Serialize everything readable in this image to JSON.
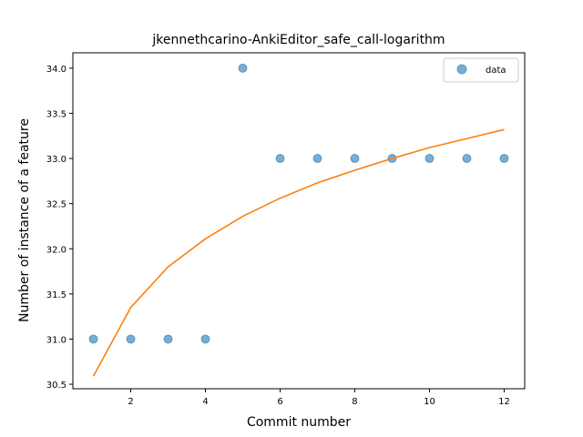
{
  "chart_data": {
    "type": "scatter",
    "title": "jkennethcarino-AnkiEditor_safe_call-logarithm",
    "xlabel": "Commit number",
    "ylabel": "Number of instance of a feature",
    "xlim": [
      0.45,
      12.55
    ],
    "ylim": [
      30.45,
      34.17
    ],
    "xticks": [
      2,
      4,
      6,
      8,
      10,
      12
    ],
    "yticks": [
      30.5,
      31.0,
      31.5,
      32.0,
      32.5,
      33.0,
      33.5,
      34.0
    ],
    "ytick_labels": [
      "30.5",
      "31.0",
      "31.5",
      "32.0",
      "32.5",
      "33.0",
      "33.5",
      "34.0"
    ],
    "grid": false,
    "legend": {
      "placement": "top-right",
      "entries": [
        "data"
      ]
    },
    "colors": {
      "data": "#1f77b4",
      "fit": "#ff7f0e"
    },
    "series": [
      {
        "name": "data",
        "type": "scatter",
        "x": [
          1,
          2,
          3,
          4,
          5,
          6,
          7,
          8,
          9,
          10,
          11,
          12
        ],
        "y": [
          31,
          31,
          31,
          31,
          34,
          33,
          33,
          33,
          33,
          33,
          33,
          33
        ]
      },
      {
        "type": "line",
        "x": [
          1,
          2,
          3,
          4,
          5,
          6,
          7,
          8,
          9,
          10,
          11,
          12
        ],
        "y": [
          30.59,
          31.35,
          31.8,
          32.11,
          32.36,
          32.56,
          32.73,
          32.87,
          33.0,
          33.12,
          33.22,
          33.32
        ]
      }
    ]
  }
}
